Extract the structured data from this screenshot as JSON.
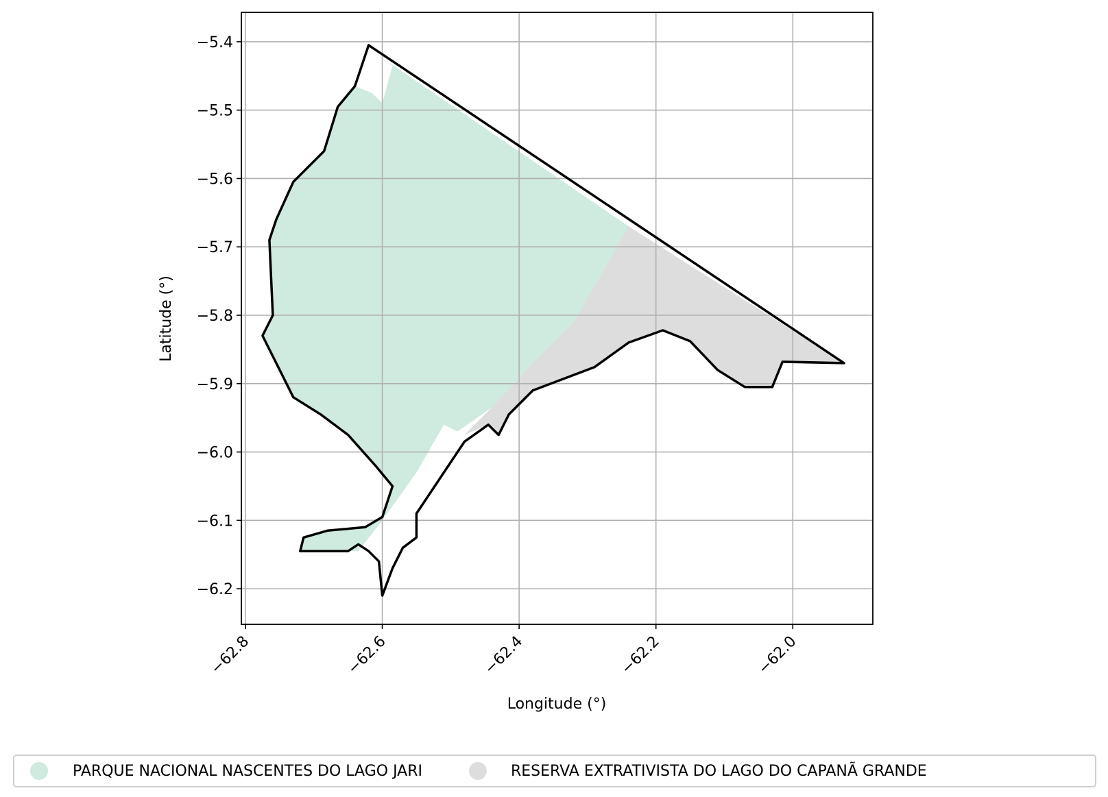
{
  "map": {
    "x_axis": {
      "label": "Longitude (°)",
      "ticks": [
        -62.8,
        -62.6,
        -62.4,
        -62.2,
        -62.0
      ],
      "tick_labels": [
        "−62.8",
        "−62.6",
        "−62.4",
        "−62.2",
        "−62.0"
      ],
      "range": [
        -62.806,
        -61.883
      ]
    },
    "y_axis": {
      "label": "Latitude (°)",
      "ticks": [
        -5.4,
        -5.5,
        -5.6,
        -5.7,
        -5.8,
        -5.9,
        -6.0,
        -6.1,
        -6.2
      ],
      "tick_labels": [
        "−5.4",
        "−5.5",
        "−5.6",
        "−5.7",
        "−5.8",
        "−5.9",
        "−6.0",
        "−6.1",
        "−6.2"
      ],
      "range": [
        -6.252,
        -5.357
      ]
    },
    "grid": true,
    "areas": [
      {
        "name": "PARQUE NACIONAL NASCENTES DO LAGO JARI",
        "color": "#cfeade",
        "polygon": [
          [
            -62.62,
            -5.41
          ],
          [
            -62.585,
            -5.435
          ],
          [
            -62.6,
            -5.49
          ],
          [
            -62.615,
            -5.475
          ],
          [
            -62.64,
            -5.465
          ],
          [
            -62.665,
            -5.495
          ],
          [
            -62.685,
            -5.56
          ],
          [
            -62.73,
            -5.605
          ],
          [
            -62.755,
            -5.66
          ],
          [
            -62.765,
            -5.69
          ],
          [
            -62.76,
            -5.8
          ],
          [
            -62.775,
            -5.83
          ],
          [
            -62.75,
            -5.88
          ],
          [
            -62.73,
            -5.92
          ],
          [
            -62.69,
            -5.945
          ],
          [
            -62.65,
            -5.975
          ],
          [
            -62.61,
            -6.02
          ],
          [
            -62.585,
            -6.05
          ],
          [
            -62.6,
            -6.095
          ],
          [
            -62.625,
            -6.11
          ],
          [
            -62.68,
            -6.115
          ],
          [
            -62.715,
            -6.125
          ],
          [
            -62.72,
            -6.145
          ],
          [
            -62.635,
            -6.145
          ],
          [
            -62.6,
            -6.1
          ],
          [
            -62.55,
            -6.03
          ],
          [
            -62.51,
            -5.96
          ],
          [
            -62.49,
            -5.97
          ],
          [
            -62.44,
            -5.935
          ],
          [
            -62.38,
            -5.87
          ],
          [
            -62.32,
            -5.81
          ],
          [
            -62.24,
            -5.67
          ]
        ]
      },
      {
        "name": "RESERVA EXTRATIVISTA DO LAGO DO CAPANÃ GRANDE",
        "color": "#dddddd",
        "polygon": [
          [
            -62.24,
            -5.67
          ],
          [
            -61.925,
            -5.87
          ],
          [
            -62.015,
            -5.868
          ],
          [
            -62.03,
            -5.905
          ],
          [
            -62.07,
            -5.905
          ],
          [
            -62.11,
            -5.88
          ],
          [
            -62.15,
            -5.838
          ],
          [
            -62.19,
            -5.822
          ],
          [
            -62.24,
            -5.84
          ],
          [
            -62.29,
            -5.876
          ],
          [
            -62.38,
            -5.91
          ],
          [
            -62.415,
            -5.945
          ],
          [
            -62.43,
            -5.975
          ],
          [
            -62.445,
            -5.96
          ],
          [
            -62.48,
            -5.975
          ],
          [
            -62.44,
            -5.935
          ],
          [
            -62.38,
            -5.87
          ],
          [
            -62.32,
            -5.81
          ]
        ]
      }
    ],
    "boundary": {
      "color": "#000000",
      "outline": [
        [
          -62.62,
          -5.405
        ],
        [
          -61.925,
          -5.87
        ],
        [
          -62.015,
          -5.868
        ],
        [
          -62.03,
          -5.905
        ],
        [
          -62.07,
          -5.905
        ],
        [
          -62.11,
          -5.88
        ],
        [
          -62.15,
          -5.838
        ],
        [
          -62.19,
          -5.822
        ],
        [
          -62.24,
          -5.84
        ],
        [
          -62.29,
          -5.876
        ],
        [
          -62.38,
          -5.91
        ],
        [
          -62.415,
          -5.945
        ],
        [
          -62.43,
          -5.975
        ],
        [
          -62.445,
          -5.96
        ],
        [
          -62.48,
          -5.985
        ],
        [
          -62.55,
          -6.09
        ],
        [
          -62.55,
          -6.125
        ],
        [
          -62.57,
          -6.14
        ],
        [
          -62.585,
          -6.17
        ],
        [
          -62.6,
          -6.21
        ],
        [
          -62.605,
          -6.16
        ],
        [
          -62.62,
          -6.145
        ],
        [
          -62.635,
          -6.135
        ],
        [
          -62.65,
          -6.145
        ],
        [
          -62.72,
          -6.145
        ],
        [
          -62.715,
          -6.125
        ],
        [
          -62.68,
          -6.115
        ],
        [
          -62.625,
          -6.11
        ],
        [
          -62.6,
          -6.095
        ],
        [
          -62.585,
          -6.05
        ],
        [
          -62.61,
          -6.02
        ],
        [
          -62.65,
          -5.975
        ],
        [
          -62.69,
          -5.945
        ],
        [
          -62.73,
          -5.92
        ],
        [
          -62.75,
          -5.88
        ],
        [
          -62.775,
          -5.83
        ],
        [
          -62.76,
          -5.8
        ],
        [
          -62.765,
          -5.69
        ],
        [
          -62.755,
          -5.66
        ],
        [
          -62.73,
          -5.605
        ],
        [
          -62.685,
          -5.56
        ],
        [
          -62.665,
          -5.495
        ],
        [
          -62.64,
          -5.465
        ],
        [
          -62.62,
          -5.405
        ]
      ]
    }
  },
  "legend": {
    "items": [
      {
        "label": "PARQUE NACIONAL NASCENTES DO LAGO JARI",
        "color": "#cfeade"
      },
      {
        "label": "RESERVA EXTRATIVISTA DO LAGO DO CAPANÃ GRANDE",
        "color": "#dddddd"
      }
    ]
  }
}
